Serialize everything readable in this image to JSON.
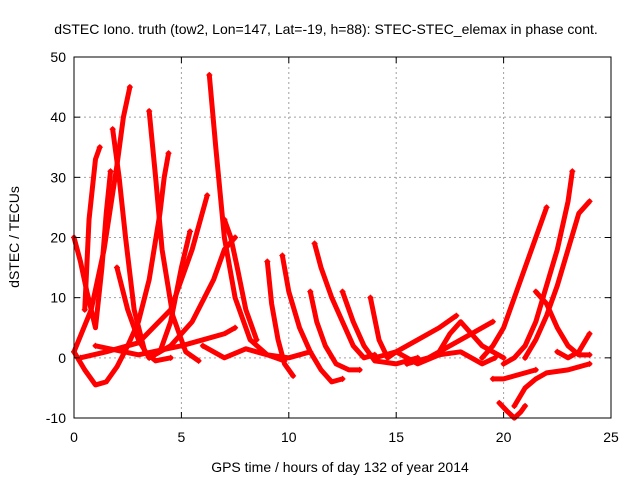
{
  "chart_data": {
    "type": "scatter",
    "title": "dSTEC Iono. truth (tow2, Lon=147, Lat=-19, h=88): STEC-STEC_elemax in phase cont.",
    "xlabel": "GPS time / hours of day 132 of year 2014",
    "ylabel": "dSTEC  / TECUs",
    "xlim": [
      0,
      25
    ],
    "ylim": [
      -10,
      50
    ],
    "xticks": [
      0,
      5,
      10,
      15,
      20,
      25
    ],
    "yticks": [
      -10,
      0,
      10,
      20,
      30,
      40,
      50
    ],
    "grid": true,
    "legend": "none",
    "marker": "plus",
    "color": "#ff0000",
    "series": [
      {
        "x": [
          0.0,
          0.3,
          0.6,
          1.0,
          1.3,
          1.5,
          1.7
        ],
        "y": [
          20,
          16,
          11,
          5,
          15,
          24,
          31
        ]
      },
      {
        "x": [
          0.5,
          0.7,
          1.0,
          1.2
        ],
        "y": [
          8,
          23,
          33,
          35
        ]
      },
      {
        "x": [
          0.0,
          0.5,
          1.0,
          1.5,
          2.0,
          2.5,
          3.0,
          3.5,
          4.0,
          4.2,
          4.4
        ],
        "y": [
          1,
          -2,
          -4.5,
          -4,
          -1.5,
          2,
          6,
          13,
          24,
          30,
          34
        ]
      },
      {
        "x": [
          0.0,
          0.8,
          1.4,
          2.0,
          2.3,
          2.6
        ],
        "y": [
          1,
          8,
          18,
          32,
          40,
          45
        ]
      },
      {
        "x": [
          1.8,
          2.1,
          2.4,
          2.8,
          3.3,
          3.8,
          4.5
        ],
        "y": [
          38,
          30,
          20,
          8,
          1,
          -0.5,
          0
        ]
      },
      {
        "x": [
          3.5,
          3.8,
          4.1,
          4.6,
          5.2,
          5.8
        ],
        "y": [
          41,
          30,
          18,
          7,
          1,
          -0.5
        ]
      },
      {
        "x": [
          2.0,
          2.5,
          3.0,
          3.5,
          4.0,
          4.5,
          5.0,
          5.4
        ],
        "y": [
          15,
          8,
          3,
          0,
          1,
          6,
          15,
          21
        ]
      },
      {
        "x": [
          0.3,
          1.5,
          3.0,
          4.5,
          5.5,
          6.2
        ],
        "y": [
          0,
          1,
          2.5,
          8,
          18,
          27
        ]
      },
      {
        "x": [
          1.0,
          3.0,
          5.0,
          6.0,
          7.0,
          7.5
        ],
        "y": [
          2,
          0.5,
          2,
          3,
          4,
          5
        ]
      },
      {
        "x": [
          6.3,
          6.6,
          7.0,
          7.5,
          8.2,
          9.0,
          9.8
        ],
        "y": [
          47,
          35,
          20,
          10,
          3,
          0.5,
          -0.5
        ]
      },
      {
        "x": [
          3.5,
          4.5,
          5.5,
          6.5,
          7.0,
          7.5
        ],
        "y": [
          0,
          2,
          6,
          13,
          18,
          20
        ]
      },
      {
        "x": [
          7.0,
          7.3,
          7.6,
          8.0,
          8.5
        ],
        "y": [
          23,
          20,
          15,
          8,
          3
        ]
      },
      {
        "x": [
          6.0,
          7.0,
          8.0,
          9.0,
          10.0,
          10.5,
          11.0
        ],
        "y": [
          2,
          0,
          1.5,
          0.5,
          0,
          0.5,
          1
        ]
      },
      {
        "x": [
          9.0,
          9.2,
          9.5,
          9.8,
          10.2
        ],
        "y": [
          16,
          9,
          3,
          -1,
          -3
        ]
      },
      {
        "x": [
          9.7,
          10.0,
          10.5,
          11.0,
          11.5,
          12.0,
          12.5
        ],
        "y": [
          17,
          11,
          5,
          1,
          -2,
          -4,
          -3.5
        ]
      },
      {
        "x": [
          11.2,
          11.5,
          12.0,
          12.5,
          13.0,
          13.5,
          14.0
        ],
        "y": [
          19,
          15,
          10,
          6,
          2,
          0,
          0.5
        ]
      },
      {
        "x": [
          11.0,
          11.3,
          11.7,
          12.2,
          12.8,
          13.3
        ],
        "y": [
          11,
          6,
          2,
          -1,
          -2,
          -2
        ]
      },
      {
        "x": [
          12.5,
          13.0,
          13.5,
          14.0,
          15.0,
          16.0
        ],
        "y": [
          11,
          6,
          2,
          -0.5,
          -1,
          0
        ]
      },
      {
        "x": [
          13.8,
          14.2,
          14.6,
          15.0,
          16.0,
          17.0,
          17.8
        ],
        "y": [
          10,
          3,
          0,
          1,
          3,
          5,
          7
        ]
      },
      {
        "x": [
          14.0,
          15.0,
          16.0,
          17.0,
          18.0,
          19.0,
          19.6
        ],
        "y": [
          0,
          1,
          -1,
          0.5,
          1,
          -1,
          0
        ]
      },
      {
        "x": [
          15.5,
          16.5,
          17.5,
          18.5,
          19.5
        ],
        "y": [
          -1,
          0,
          2,
          4,
          6
        ]
      },
      {
        "x": [
          17.0,
          17.5,
          18.0,
          18.5,
          19.0,
          19.5,
          20.0
        ],
        "y": [
          1,
          4,
          6,
          4,
          2,
          1,
          0
        ]
      },
      {
        "x": [
          19.0,
          19.5,
          20.0,
          20.5,
          21.0,
          21.5,
          22.0
        ],
        "y": [
          0,
          2,
          5,
          10,
          15,
          20,
          25
        ]
      },
      {
        "x": [
          20.0,
          20.5,
          21.0,
          21.5,
          22.0,
          22.5,
          23.0,
          23.2
        ],
        "y": [
          -1,
          0,
          2,
          6,
          12,
          18,
          26,
          31
        ]
      },
      {
        "x": [
          19.8,
          20.2,
          20.5,
          20.8,
          21.0
        ],
        "y": [
          -7.5,
          -9,
          -10,
          -9,
          -8
        ]
      },
      {
        "x": [
          20.5,
          21.0,
          21.5,
          22.0,
          23.0,
          23.5,
          24.0
        ],
        "y": [
          -8,
          -5,
          -3.5,
          -2.5,
          -2,
          -1.5,
          -1
        ]
      },
      {
        "x": [
          19.5,
          20.0,
          20.5,
          21.0,
          21.5
        ],
        "y": [
          -3.5,
          -3.5,
          -3,
          -2.5,
          -2
        ]
      },
      {
        "x": [
          21.5,
          22.0,
          22.5,
          23.0,
          23.5,
          24.0
        ],
        "y": [
          11,
          9,
          5,
          2,
          0.5,
          0.5
        ]
      },
      {
        "x": [
          21.0,
          21.5,
          22.0,
          22.5,
          23.0,
          23.5,
          24.0
        ],
        "y": [
          0,
          3,
          7,
          12,
          18,
          24,
          26
        ]
      },
      {
        "x": [
          22.5,
          23.0,
          23.5,
          24.0
        ],
        "y": [
          1,
          0,
          1,
          4
        ]
      }
    ]
  }
}
